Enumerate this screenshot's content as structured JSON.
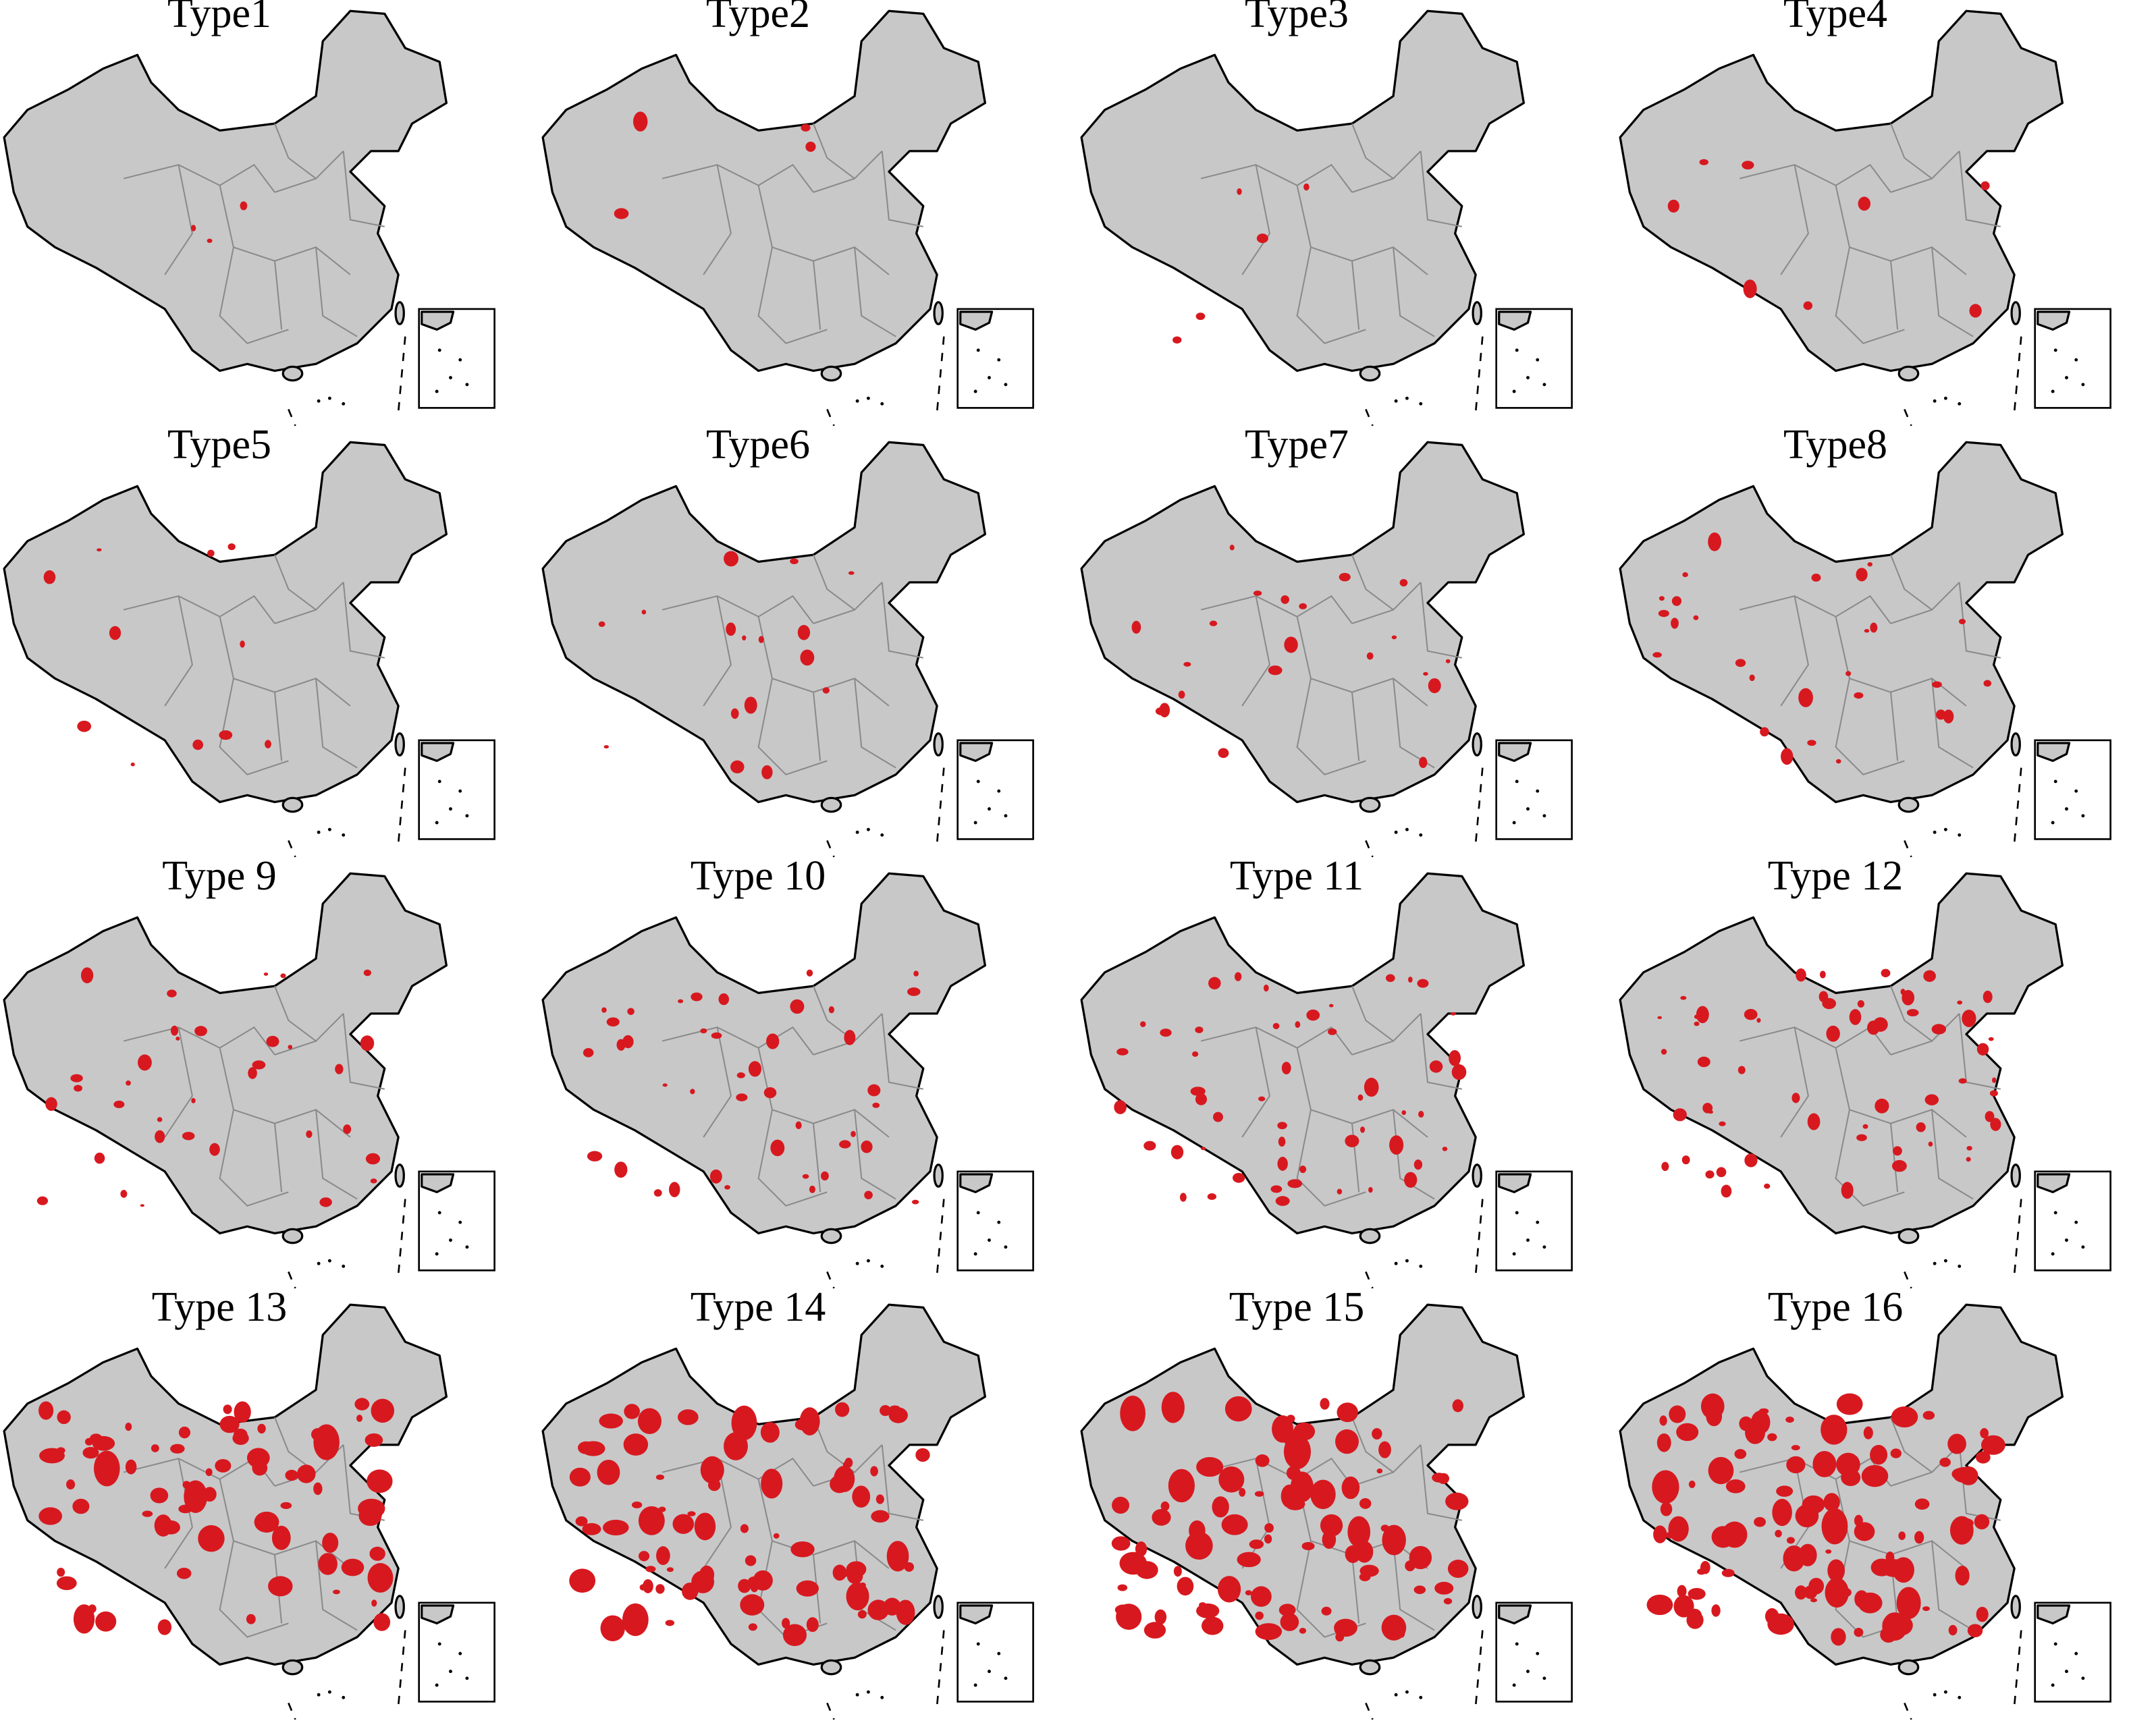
{
  "maps": [
    {
      "title": "Type1"
    },
    {
      "title": "Type2"
    },
    {
      "title": "Type3"
    },
    {
      "title": "Type4"
    },
    {
      "title": "Type5"
    },
    {
      "title": "Type6"
    },
    {
      "title": "Type7"
    },
    {
      "title": "Type8"
    },
    {
      "title": "Type 9"
    },
    {
      "title": "Type 10"
    },
    {
      "title": "Type 11"
    },
    {
      "title": "Type 12"
    },
    {
      "title": "Type 13"
    },
    {
      "title": "Type 14"
    },
    {
      "title": "Type 15"
    },
    {
      "title": "Type 16"
    }
  ]
}
